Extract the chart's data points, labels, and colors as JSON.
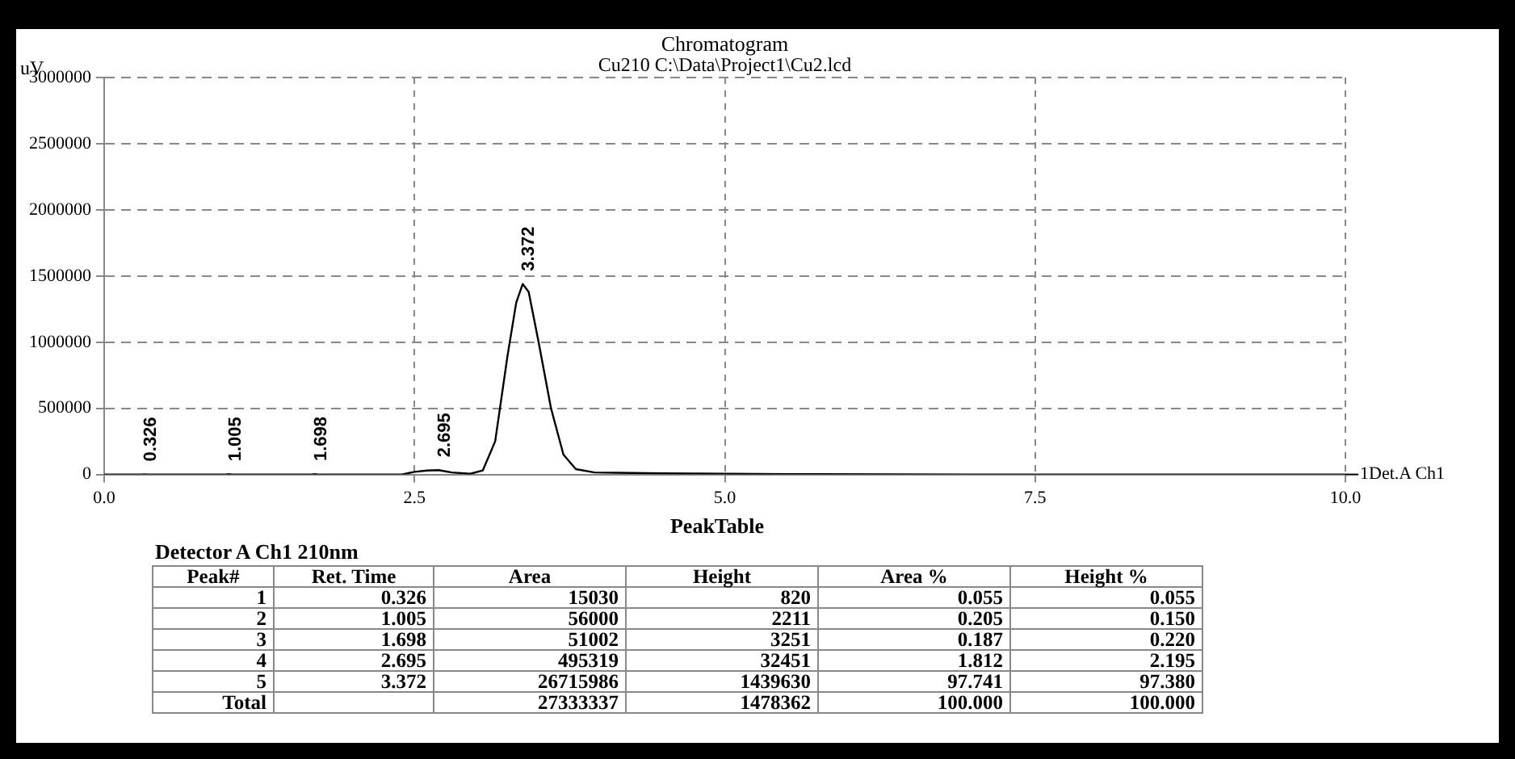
{
  "chart_data": [
    {
      "type": "line",
      "title": "Chromatogram",
      "subtitle": "Cu210 C:\\Data\\Project1\\Cu2.lcd",
      "ylabel": "uV",
      "series": [
        {
          "name": "1Det.A Ch1",
          "color": "#000000",
          "x": [
            0,
            0.3,
            0.326,
            0.35,
            0.98,
            1.005,
            1.03,
            1.67,
            1.698,
            1.72,
            2.4,
            2.5,
            2.6,
            2.695,
            2.8,
            2.95,
            3.05,
            3.15,
            3.25,
            3.32,
            3.372,
            3.42,
            3.5,
            3.6,
            3.7,
            3.8,
            3.95,
            4.5,
            5.5,
            7,
            10
          ],
          "values": [
            0,
            0,
            820,
            0,
            0,
            2211,
            0,
            0,
            3251,
            0,
            0,
            20000,
            30000,
            32451,
            15000,
            5000,
            30000,
            250000,
            900000,
            1300000,
            1439630,
            1380000,
            1000000,
            500000,
            150000,
            40000,
            15000,
            8000,
            3000,
            0,
            0
          ]
        }
      ],
      "xlim": [
        0,
        10
      ],
      "xticks": [
        {
          "value": 0,
          "label": "0.0"
        },
        {
          "value": 2.5,
          "label": "2.5"
        },
        {
          "value": 5,
          "label": "5.0"
        },
        {
          "value": 7.5,
          "label": "7.5"
        },
        {
          "value": 10,
          "label": "10.0"
        }
      ],
      "ylim": [
        0,
        3000000
      ],
      "yticks": [
        0,
        500000,
        1000000,
        1500000,
        2000000,
        2500000,
        3000000
      ],
      "grid": true,
      "legend": "right",
      "marker": "none",
      "line_style": "solid",
      "annotations": [
        {
          "text": "0.326",
          "x": 0.326,
          "y": 820
        },
        {
          "text": "1.005",
          "x": 1.005,
          "y": 2211
        },
        {
          "text": "1.698",
          "x": 1.698,
          "y": 3251
        },
        {
          "text": "2.695",
          "x": 2.695,
          "y": 32451
        },
        {
          "text": "3.372",
          "x": 3.372,
          "y": 1439630
        }
      ]
    },
    {
      "type": "heatmap",
      "title": "PeakTable",
      "subtitle": "Detector A Ch1 210nm",
      "ylabel": "Peak#",
      "categories": [
        "Ret. Time",
        "Area",
        "Height",
        "Area %",
        "Height %"
      ],
      "y_categories": [
        "1",
        "2",
        "3",
        "4",
        "5",
        "Total"
      ],
      "cells": [
        [
          0.326,
          15030,
          820,
          0.055,
          0.055
        ],
        [
          1.005,
          56000,
          2211,
          0.205,
          0.15
        ],
        [
          1.698,
          51002,
          3251,
          0.187,
          0.22
        ],
        [
          2.695,
          495319,
          32451,
          1.812,
          2.195
        ],
        [
          3.372,
          26715986,
          1439630,
          97.741,
          97.38
        ],
        [
          null,
          27333337,
          1478362,
          100.0,
          100.0
        ]
      ],
      "cell_labels": [
        [
          "0.326",
          "15030",
          "820",
          "0.055",
          "0.055"
        ],
        [
          "1.005",
          "56000",
          "2211",
          "0.205",
          "0.150"
        ],
        [
          "1.698",
          "51002",
          "3251",
          "0.187",
          "0.220"
        ],
        [
          "2.695",
          "495319",
          "32451",
          "1.812",
          "2.195"
        ],
        [
          "3.372",
          "26715986",
          "1439630",
          "97.741",
          "97.380"
        ],
        [
          null,
          "27333337",
          "1478362",
          "100.000",
          "100.000"
        ]
      ]
    }
  ]
}
